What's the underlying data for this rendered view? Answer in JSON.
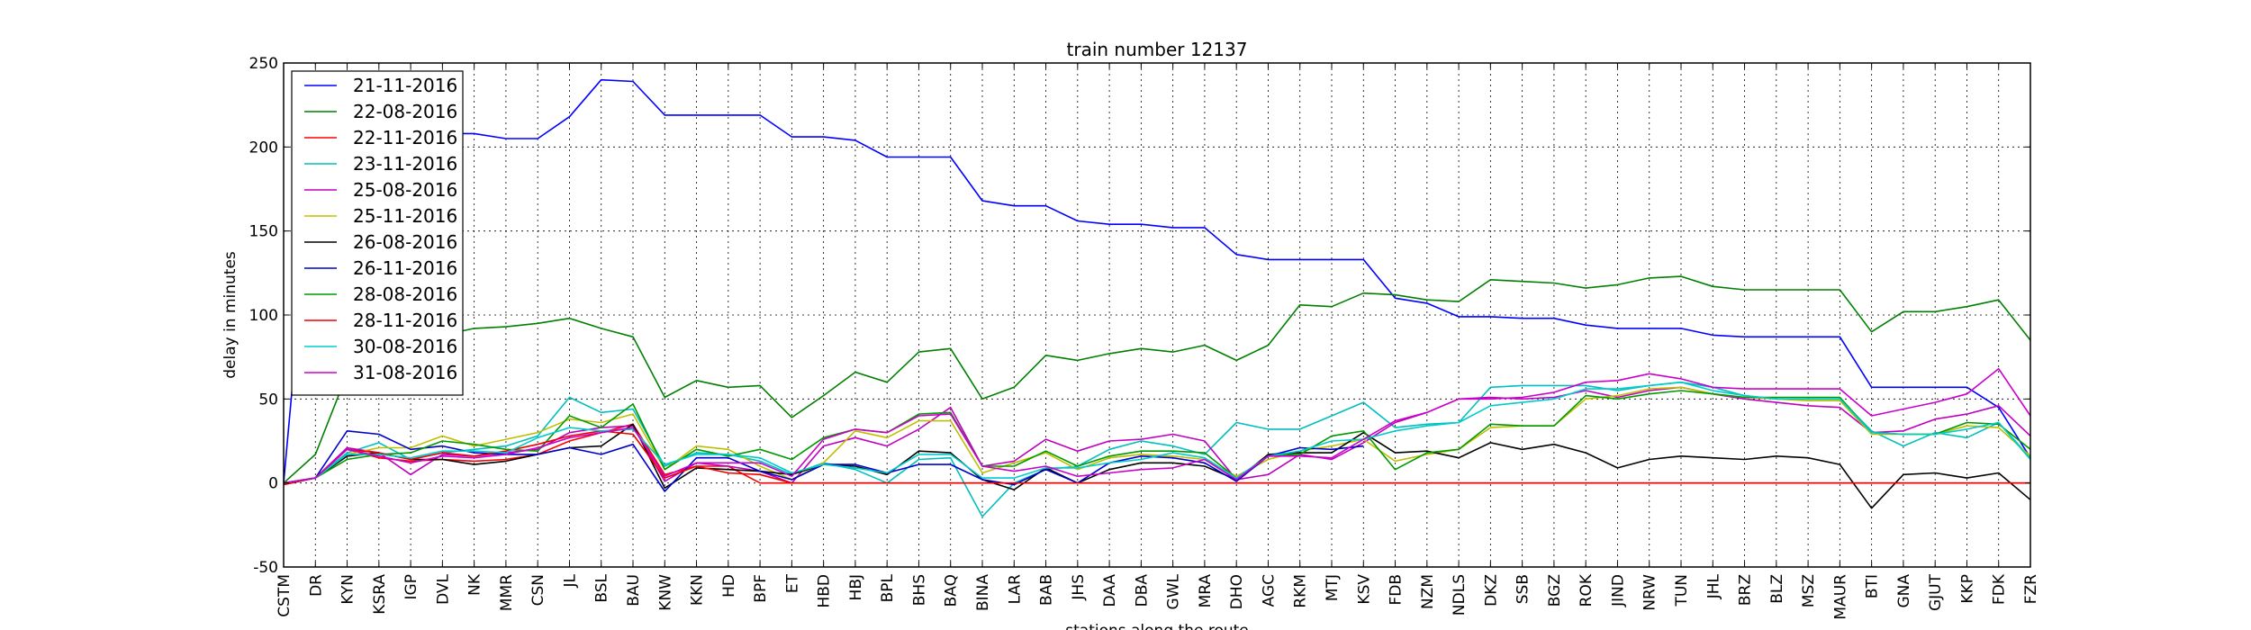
{
  "chart_data": {
    "type": "line",
    "title": "train number 12137",
    "xlabel": "stations along the route",
    "ylabel": "delay in minutes",
    "ylim": [
      -50,
      250
    ],
    "yticks": [
      -50,
      0,
      50,
      100,
      150,
      200,
      250
    ],
    "grid": true,
    "legend_position": "top-left",
    "categories": [
      "CSTM",
      "DR",
      "KYN",
      "KSRA",
      "IGP",
      "DVL",
      "NK",
      "MMR",
      "CSN",
      "JL",
      "BSL",
      "BAU",
      "KNW",
      "KKN",
      "HD",
      "BPF",
      "ET",
      "HBD",
      "HBJ",
      "BPL",
      "BHS",
      "BAQ",
      "BINA",
      "LAR",
      "BAB",
      "JHS",
      "DAA",
      "DBA",
      "GWL",
      "MRA",
      "DHO",
      "AGC",
      "RKM",
      "MTJ",
      "KSV",
      "FDB",
      "NZM",
      "NDLS",
      "DKZ",
      "SSB",
      "BGZ",
      "ROK",
      "JIND",
      "NRW",
      "TUN",
      "JHL",
      "BRZ",
      "BLZ",
      "MSZ",
      "MAUR",
      "BTI",
      "GNA",
      "GJUT",
      "KKP",
      "FDK",
      "FZR"
    ],
    "series": [
      {
        "name": "21-11-2016",
        "color": "#0000ff",
        "values": [
          0,
          210,
          215,
          213,
          210,
          208,
          208,
          205,
          205,
          218,
          240,
          239,
          219,
          219,
          219,
          219,
          206,
          206,
          204,
          194,
          194,
          194,
          168,
          165,
          165,
          156,
          154,
          154,
          152,
          152,
          136,
          133,
          133,
          133,
          133,
          110,
          107,
          99,
          99,
          98,
          98,
          94,
          92,
          92,
          92,
          88,
          87,
          87,
          87,
          87,
          57,
          57,
          57,
          57,
          45,
          15
        ]
      },
      {
        "name": "22-08-2016",
        "color": "#008000",
        "values": [
          0,
          17,
          65,
          75,
          80,
          88,
          92,
          93,
          95,
          98,
          92,
          87,
          51,
          61,
          57,
          58,
          39,
          52,
          66,
          60,
          78,
          80,
          50,
          57,
          76,
          73,
          77,
          80,
          78,
          82,
          73,
          82,
          106,
          105,
          113,
          112,
          109,
          108,
          121,
          120,
          119,
          116,
          118,
          122,
          123,
          117,
          115,
          115,
          115,
          115,
          90,
          102,
          102,
          105,
          109,
          85
        ]
      },
      {
        "name": "22-11-2016",
        "color": "#ff0000",
        "values": [
          0,
          3,
          20,
          15,
          13,
          14,
          13,
          14,
          17,
          25,
          30,
          35,
          5,
          10,
          10,
          0,
          0,
          0,
          0,
          0,
          0,
          0,
          0,
          0,
          0,
          0,
          0,
          0,
          0,
          0,
          0,
          0,
          0,
          0,
          0,
          0,
          0,
          0,
          0,
          0,
          0,
          0,
          0,
          0,
          0,
          0,
          0,
          0,
          0,
          0,
          0,
          0,
          0,
          0,
          0,
          0
        ]
      },
      {
        "name": "23-11-2016",
        "color": "#00bfbf",
        "values": [
          0,
          3,
          18,
          24,
          14,
          18,
          20,
          22,
          28,
          51,
          42,
          44,
          10,
          18,
          17,
          13,
          5,
          12,
          8,
          0,
          14,
          15,
          -20,
          0,
          8,
          10,
          20,
          25,
          22,
          17,
          36,
          32,
          32,
          40,
          48,
          33,
          35,
          36,
          57,
          58,
          58,
          58,
          55,
          58,
          60,
          57,
          52,
          50,
          50,
          50,
          31,
          22,
          30,
          27,
          36,
          15
        ]
      },
      {
        "name": "25-08-2016",
        "color": "#bf00bf",
        "values": [
          0,
          3,
          21,
          18,
          5,
          17,
          16,
          18,
          20,
          30,
          33,
          34,
          1,
          12,
          10,
          7,
          0,
          22,
          27,
          22,
          32,
          45,
          10,
          13,
          26,
          19,
          25,
          26,
          29,
          25,
          2,
          5,
          17,
          14,
          24,
          36,
          42,
          50,
          51,
          50,
          51,
          55,
          51,
          55,
          57,
          53,
          50,
          48,
          46,
          45,
          30,
          31,
          38,
          41,
          46,
          28
        ]
      },
      {
        "name": "25-11-2016",
        "color": "#bfbf00",
        "values": [
          0,
          3,
          17,
          21,
          21,
          28,
          22,
          26,
          30,
          38,
          36,
          41,
          8,
          22,
          20,
          10,
          2,
          12,
          31,
          27,
          37,
          37,
          6,
          12,
          18,
          8,
          15,
          17,
          16,
          14,
          4,
          14,
          19,
          22,
          26,
          13,
          17,
          20,
          33,
          34,
          34,
          50,
          52,
          56,
          57,
          53,
          51,
          50,
          49,
          49,
          29,
          29,
          29,
          34,
          33,
          16
        ]
      },
      {
        "name": "26-08-2016",
        "color": "#000000",
        "values": [
          0,
          3,
          16,
          18,
          14,
          14,
          11,
          13,
          17,
          21,
          22,
          35,
          -3,
          9,
          8,
          7,
          5,
          11,
          10,
          5,
          19,
          18,
          2,
          -4,
          9,
          0,
          8,
          12,
          12,
          10,
          2,
          17,
          18,
          18,
          30,
          18,
          19,
          15,
          24,
          20,
          23,
          18,
          9,
          14,
          16,
          15,
          14,
          16,
          15,
          11,
          -15,
          5,
          6,
          3,
          6,
          -10
        ]
      },
      {
        "name": "26-11-2016",
        "color": "#0000cc",
        "values": [
          -1,
          3,
          31,
          29,
          20,
          22,
          18,
          17,
          17,
          21,
          17,
          23,
          -5,
          15,
          15,
          7,
          2,
          11,
          11,
          6,
          11,
          11,
          2,
          -1,
          8,
          0,
          12,
          16,
          15,
          12,
          1,
          16,
          21,
          20,
          22,
          null,
          null,
          null,
          null,
          null,
          null,
          null,
          null,
          null,
          null,
          null,
          null,
          null,
          null,
          null,
          null,
          null,
          null,
          null,
          null,
          null
        ]
      },
      {
        "name": "28-08-2016",
        "color": "#009900",
        "values": [
          0,
          3,
          14,
          17,
          18,
          25,
          23,
          20,
          19,
          40,
          33,
          47,
          8,
          20,
          16,
          20,
          14,
          27,
          32,
          30,
          41,
          42,
          10,
          10,
          19,
          10,
          16,
          19,
          19,
          18,
          3,
          16,
          17,
          28,
          31,
          8,
          18,
          20,
          35,
          34,
          34,
          52,
          50,
          53,
          55,
          53,
          51,
          51,
          51,
          51,
          30,
          29,
          29,
          36,
          35,
          20
        ]
      },
      {
        "name": "28-11-2016",
        "color": "#ee0000",
        "values": [
          -1,
          3,
          20,
          18,
          14,
          18,
          16,
          19,
          23,
          28,
          31,
          29,
          3,
          10,
          6,
          5,
          0,
          0,
          0,
          0,
          0,
          0,
          0,
          0,
          0,
          0,
          0,
          0,
          0,
          0,
          0,
          0,
          0,
          0,
          0,
          0,
          0,
          0,
          0,
          0,
          0,
          0,
          0,
          0,
          0,
          0,
          0,
          0,
          0,
          0,
          0,
          0,
          0,
          0,
          0,
          0
        ]
      },
      {
        "name": "30-08-2016",
        "color": "#00cccc",
        "values": [
          0,
          3,
          17,
          17,
          15,
          19,
          19,
          18,
          27,
          33,
          31,
          32,
          11,
          17,
          17,
          15,
          6,
          11,
          9,
          6,
          17,
          17,
          3,
          3,
          9,
          9,
          12,
          14,
          18,
          15,
          3,
          16,
          19,
          25,
          26,
          31,
          34,
          36,
          46,
          48,
          50,
          56,
          56,
          58,
          60,
          55,
          52,
          50,
          50,
          50,
          30,
          29,
          29,
          32,
          36,
          14
        ]
      },
      {
        "name": "31-08-2016",
        "color": "#cc00cc",
        "values": [
          0,
          3,
          20,
          16,
          12,
          16,
          15,
          17,
          21,
          27,
          30,
          33,
          4,
          12,
          12,
          12,
          4,
          26,
          32,
          30,
          40,
          41,
          10,
          7,
          10,
          4,
          6,
          8,
          9,
          14,
          2,
          16,
          16,
          15,
          26,
          37,
          42,
          50,
          50,
          51,
          54,
          60,
          61,
          65,
          62,
          57,
          56,
          56,
          56,
          56,
          40,
          44,
          48,
          53,
          68,
          40
        ]
      }
    ]
  }
}
